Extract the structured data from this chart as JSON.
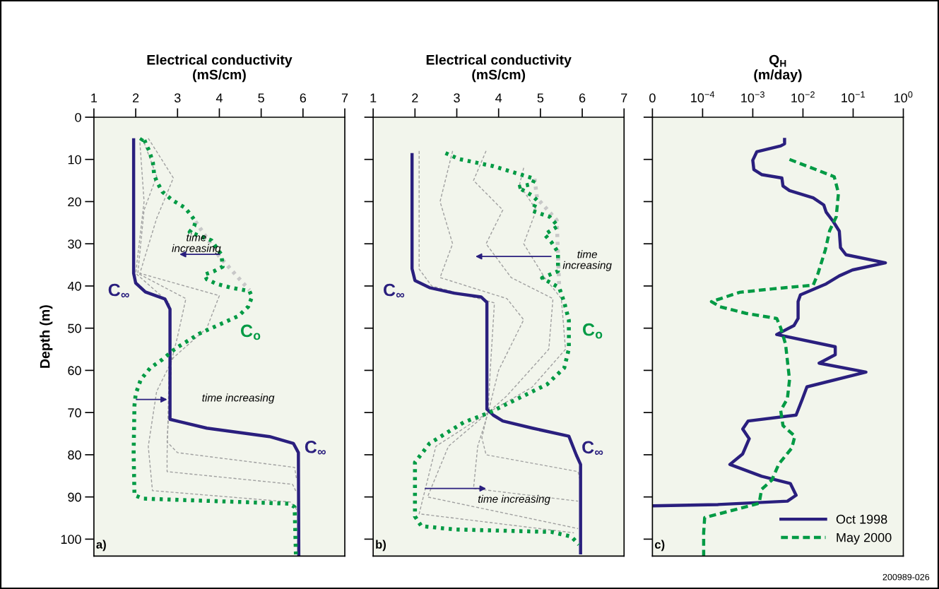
{
  "chart_data": [
    {
      "type": "line",
      "xlabel": "Electrical conductivity\n(mS/cm)",
      "ylabel": "Depth (m)",
      "xlim": [
        1,
        7
      ],
      "xticks": [
        1,
        2,
        3,
        4,
        5,
        6,
        7
      ],
      "ylim": [
        104,
        0
      ],
      "yticks": [
        0,
        10,
        20,
        30,
        40,
        50,
        60,
        70,
        80,
        90,
        100
      ],
      "grid": false,
      "legend": false,
      "marker": "none",
      "series": [
        {
          "color": "#a0a0a0",
          "line_style": "dashed",
          "x": [
            2.3,
            2.9,
            2.5,
            2.1,
            4.0,
            3.7,
            2.9,
            2.5,
            2.3,
            2.4,
            5.7,
            5.85
          ],
          "values": [
            5,
            14.4,
            24,
            37,
            42.3,
            50,
            57,
            65,
            78,
            88.5,
            91.2,
            93
          ]
        },
        {
          "color": "#a0a0a0",
          "line_style": "dashed",
          "x": [
            2.2,
            2.5,
            2.2,
            2.05,
            3.2,
            3.0,
            2.8,
            2.75,
            2.75,
            5.75,
            5.85
          ],
          "values": [
            6,
            14,
            22,
            37,
            43,
            52,
            60,
            80,
            84,
            87,
            89
          ]
        },
        {
          "color": "#a0a0a0",
          "line_style": "dashed",
          "x": [
            2.1,
            2.2,
            2.0,
            2.8,
            2.85,
            2.75,
            3.0,
            5.8,
            5.85
          ],
          "values": [
            6,
            20,
            37,
            44,
            60,
            77,
            79.5,
            83,
            86
          ]
        },
        {
          "color": "#c8c8c8",
          "line_style": "dotted",
          "x": [
            3.43,
            4.0,
            4.72
          ],
          "values": [
            24.7,
            33,
            41
          ]
        },
        {
          "color": "#2a1f7e",
          "line_style": "solid",
          "x": [
            1.95,
            1.95,
            2.0,
            2.23,
            2.7,
            2.82,
            2.82,
            3.7,
            5.2,
            5.77,
            5.89,
            5.9
          ],
          "values": [
            5,
            37,
            39.3,
            41.4,
            43.1,
            45.5,
            71.6,
            73.7,
            75.7,
            77.3,
            79.5,
            104
          ]
        },
        {
          "color": "#009a44",
          "line_style": "dotted",
          "x": [
            2.12,
            2.18,
            2.26,
            2.32,
            2.41,
            2.44,
            2.5,
            2.64,
            2.88,
            3.17,
            3.29,
            3.43,
            3.4,
            3.29,
            3.52,
            3.81,
            3.93,
            4.05,
            4.08,
            3.87,
            3.64,
            3.7,
            3.93,
            4.28,
            4.72,
            4.78,
            4.69,
            4.46,
            3.52,
            2.94,
            2.64,
            2.35,
            2.12,
            2.0,
            1.97,
            1.95,
            1.97,
            2.18,
            3.93,
            5.68,
            5.8,
            5.83
          ],
          "values": [
            5.6,
            4.7,
            6.7,
            7.9,
            10.7,
            13.5,
            15.2,
            17.7,
            19.7,
            21.4,
            22.8,
            24.7,
            25.8,
            27.2,
            28.1,
            29.2,
            30.9,
            32.6,
            35.4,
            36.5,
            37.3,
            38.4,
            39.5,
            40.4,
            41.2,
            42.6,
            44.9,
            47.1,
            51.3,
            54.9,
            57.4,
            59.4,
            62.2,
            65.6,
            68.3,
            79.5,
            89.6,
            90.4,
            91.0,
            91.6,
            92.4,
            103.6
          ]
        }
      ],
      "annotations": [
        "time\nincreasing",
        "time increasing",
        "C$_{∞}$",
        "C$_{o}$",
        "C$_{∞}$",
        "a)"
      ]
    },
    {
      "type": "line",
      "xlabel": "Electrical conductivity\n(mS/cm)",
      "xlim": [
        1,
        7
      ],
      "xticks": [
        1,
        2,
        3,
        4,
        5,
        6,
        7
      ],
      "ylim": [
        104,
        0
      ],
      "yticks": [
        0,
        10,
        20,
        30,
        40,
        50,
        60,
        70,
        80,
        90,
        100
      ],
      "tick_labels": "x",
      "grid": false,
      "legend": false,
      "marker": "none",
      "series": [
        {
          "color": "#a0a0a0",
          "line_style": "dashed",
          "x": [
            2.1,
            2.1,
            2.4,
            3.9,
            3.8,
            3.75,
            3.6,
            3.7,
            5.9,
            5.95
          ],
          "values": [
            8,
            36,
            40,
            44,
            60,
            69.5,
            76,
            80,
            84,
            86
          ]
        },
        {
          "color": "#a0a0a0",
          "line_style": "dashed",
          "x": [
            2.9,
            2.6,
            2.9,
            2.6,
            4.2,
            4.6,
            4.0,
            3.75,
            3.5,
            3.4,
            5.9
          ],
          "values": [
            8,
            20,
            30,
            38,
            43,
            48,
            60,
            70,
            78,
            88,
            91
          ]
        },
        {
          "color": "#a0a0a0",
          "line_style": "dashed",
          "x": [
            3.7,
            3.4,
            4.1,
            3.7,
            4.3,
            5.3,
            5.2,
            4.2,
            3.75,
            2.8,
            2.3,
            5.9
          ],
          "values": [
            8,
            15,
            22,
            30,
            38,
            43,
            55,
            66,
            70,
            78,
            90,
            97.5
          ]
        },
        {
          "color": "#a0a0a0",
          "line_style": "dashed",
          "x": [
            4.6,
            4.5,
            4.9,
            4.6,
            5.1,
            5.5,
            5.6,
            4.8,
            3.75,
            2.5,
            2.1,
            5.8
          ],
          "values": [
            12,
            16,
            22,
            30,
            38,
            43,
            55,
            64,
            70,
            78,
            94,
            98.5
          ]
        },
        {
          "color": "#c8c8c8",
          "line_style": "dotted",
          "x": [
            4.86,
            4.92,
            5.39,
            5.45
          ],
          "values": [
            14.6,
            19.2,
            24.4,
            40.4
          ]
        },
        {
          "color": "#2a1f7e",
          "line_style": "solid",
          "x": [
            1.93,
            1.93,
            2.0,
            2.35,
            2.94,
            3.58,
            3.72,
            3.72,
            3.87,
            4.1,
            4.81,
            5.68,
            5.86,
            5.96,
            5.96
          ],
          "values": [
            8.5,
            35.9,
            38.7,
            40.4,
            41.7,
            42.6,
            43.9,
            69.2,
            70.6,
            72.0,
            73.7,
            75.6,
            80.1,
            82.3,
            103.6
          ]
        },
        {
          "color": "#009a44",
          "line_style": "dotted",
          "x": [
            2.73,
            3.05,
            3.87,
            4.86,
            4.81,
            4.46,
            4.81,
            4.92,
            4.81,
            5.22,
            5.42,
            5.1,
            5.27,
            5.42,
            5.42,
            5.04,
            5.45,
            5.57,
            5.68,
            5.68,
            5.68,
            5.57,
            5.16,
            4.46,
            3.78,
            3.17,
            2.35,
            2.0,
            2.0,
            2.15,
            2.94,
            5.27,
            5.74,
            5.92
          ],
          "values": [
            8.5,
            9.9,
            11.6,
            14.6,
            15.8,
            16.6,
            18.6,
            19.7,
            22.2,
            23.6,
            25.8,
            27.8,
            29.7,
            32.0,
            36.5,
            38.1,
            40.4,
            43.9,
            48.1,
            51.6,
            54.9,
            59.4,
            63.3,
            66.7,
            70.0,
            72.3,
            77.3,
            81.8,
            94.6,
            96.9,
            97.7,
            98.3,
            99.4,
            101.3
          ]
        }
      ],
      "annotations": [
        "time\nincreasing",
        "time increasing",
        "C$_{∞}$",
        "C$_{o}$",
        "C$_{∞}$",
        "b)"
      ]
    },
    {
      "type": "line",
      "xlabel": "Q$_{H}$\n(m/day)",
      "log": "x",
      "xlim": [
        1e-05,
        1
      ],
      "xticks": [
        {
          "value": 1e-05,
          "label": "0"
        },
        {
          "value": 0.0001,
          "label": "10$^{−4}$"
        },
        {
          "value": 0.001,
          "label": "10$^{−3}$"
        },
        {
          "value": 0.01,
          "label": "10$^{−2}$"
        },
        {
          "value": 0.1,
          "label": "10$^{−1}$"
        },
        {
          "value": 1,
          "label": "10$^{0}$"
        }
      ],
      "ylim": [
        104,
        0
      ],
      "yticks": [
        0,
        10,
        20,
        30,
        40,
        50,
        60,
        70,
        80,
        90,
        100
      ],
      "tick_labels": "x",
      "grid": false,
      "legend": "bottom right",
      "marker": "none",
      "series": [
        {
          "name": "Oct 1998",
          "color": "#2a1f7e",
          "line_style": "solid",
          "x": [
            0.0043,
            0.0043,
            0.0036,
            0.0012,
            0.001,
            0.00105,
            0.0015,
            0.0038,
            0.004,
            0.0054,
            0.016,
            0.026,
            0.029,
            0.04,
            0.053,
            0.056,
            0.072,
            0.44,
            0.097,
            0.053,
            0.029,
            0.0089,
            0.008,
            0.008,
            0.0066,
            0.003,
            0.044,
            0.044,
            0.021,
            0.18,
            0.012,
            0.0098,
            0.0073,
            0.00081,
            0.00063,
            0.00085,
            0.00063,
            0.00035,
            0.0015,
            0.0056,
            0.0073,
            0.0049,
            0.0002,
            1e-05
          ],
          "values": [
            4.9,
            6.3,
            6.8,
            8.2,
            10.2,
            12.4,
            13.6,
            14.4,
            16.3,
            17.4,
            19.1,
            20.8,
            22.5,
            24.7,
            27.0,
            30.9,
            32.6,
            34.5,
            36.2,
            37.6,
            39.5,
            42.1,
            43.7,
            47.7,
            49.4,
            51.5,
            54.4,
            56.3,
            58.3,
            60.4,
            63.9,
            66.7,
            70.6,
            72.0,
            73.9,
            76.2,
            79.8,
            82.3,
            85.1,
            86.8,
            89.6,
            91.0,
            91.8,
            92.1
          ]
        },
        {
          "name": "May 2000",
          "color": "#009a44",
          "line_style": "dashed",
          "x": [
            0.0054,
            0.018,
            0.042,
            0.051,
            0.046,
            0.034,
            0.028,
            0.02,
            0.016,
            0.0024,
            0.00055,
            0.00015,
            0.00022,
            0.00074,
            0.003,
            0.0036,
            0.0045,
            0.0054,
            0.0049,
            0.0036,
            0.004,
            0.0069,
            0.006,
            0.0033,
            0.0024,
            0.0015,
            0.00134,
            0.00011,
            0.000105,
            0.000105
          ],
          "values": [
            10.0,
            12.4,
            14.1,
            18.0,
            23.6,
            26.9,
            31.4,
            37.0,
            39.8,
            40.7,
            41.5,
            43.7,
            44.9,
            46.5,
            47.7,
            49.9,
            53.8,
            62.2,
            66.7,
            69.5,
            73.1,
            75.6,
            78.4,
            82.2,
            86.0,
            88.2,
            91.5,
            94.9,
            98.5,
            104
          ]
        }
      ],
      "annotations": [
        "c)",
        "200989-026"
      ]
    }
  ]
}
